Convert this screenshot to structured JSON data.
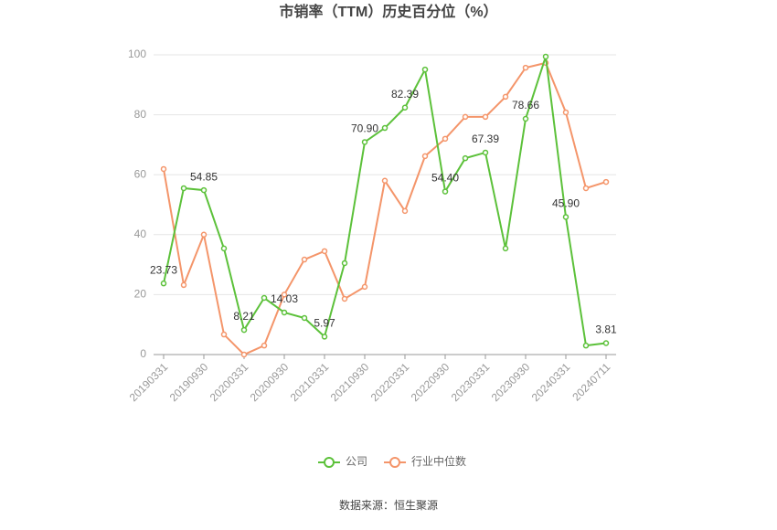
{
  "chart_data": {
    "type": "line",
    "title": "市销率（TTM）历史百分位（%）",
    "source": "数据来源：恒生聚源",
    "categories": [
      "20190331",
      null,
      "20190930",
      null,
      "20200331",
      null,
      "20200930",
      null,
      "20210331",
      null,
      "20210930",
      null,
      "20220331",
      null,
      "20220930",
      null,
      "20230331",
      null,
      "20230930",
      null,
      "20240331",
      null,
      "20240711"
    ],
    "series": [
      {
        "name": "公司",
        "color": "#5cc13a",
        "values": [
          23.73,
          55.5,
          54.85,
          35.4,
          8.21,
          18.9,
          14.03,
          12.2,
          5.97,
          30.5,
          70.9,
          75.6,
          82.39,
          95.1,
          54.4,
          65.5,
          67.39,
          35.4,
          78.66,
          99.4,
          45.9,
          3.0,
          3.81
        ],
        "value_labels": [
          "23.73",
          null,
          "54.85",
          null,
          "8.21",
          null,
          "14.03",
          null,
          "5.97",
          null,
          "70.90",
          null,
          "82.39",
          null,
          "54.40",
          null,
          "67.39",
          null,
          "78.66",
          null,
          "45.90",
          null,
          "3.81"
        ]
      },
      {
        "name": "行业中位数",
        "color": "#f4956a",
        "values": [
          61.9,
          23.2,
          40.0,
          6.7,
          0.0,
          3.0,
          20.0,
          31.7,
          34.5,
          18.6,
          22.6,
          58.0,
          47.9,
          66.2,
          72.0,
          79.3,
          79.3,
          86.0,
          95.7,
          97.3,
          80.8,
          55.5,
          57.6
        ]
      }
    ],
    "ylim": [
      0,
      100
    ],
    "yticks": [
      0,
      20,
      40,
      60,
      80,
      100
    ],
    "grid": true
  }
}
